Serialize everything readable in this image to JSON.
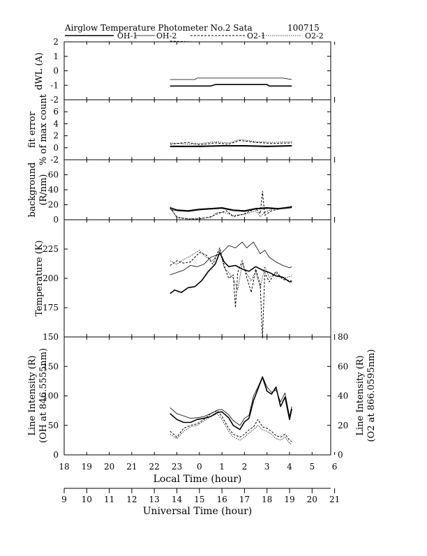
{
  "header": {
    "title": "Airglow Temperature Photometer No.2  Sata",
    "date_code": "100715"
  },
  "legend": [
    "OH-1",
    "OH-2",
    "O2-1",
    "O2-2"
  ],
  "chart_data": [
    {
      "type": "line",
      "panel": "dwl",
      "ylabel": "dWL (A)",
      "ylim": [
        -2,
        2
      ],
      "yticks": [
        "2",
        "1",
        "0",
        "-1",
        "-2"
      ],
      "series": [
        {
          "name": "OH-1",
          "x": [
            22.7,
            23.7,
            23.8,
            0.5,
            0.7,
            3.0,
            3.1,
            4.1
          ],
          "y": [
            -1.05,
            -1.05,
            -1.05,
            -1.05,
            -0.95,
            -0.95,
            -1.05,
            -1.05
          ]
        },
        {
          "name": "OH-2",
          "x": [
            22.7,
            23.8,
            23.9,
            3.5,
            3.7,
            4.1
          ],
          "y": [
            -0.6,
            -0.6,
            -0.5,
            -0.5,
            -0.5,
            -0.6
          ]
        },
        {
          "name": "O2-1",
          "x": [
            22.7,
            23.7,
            23.9
          ],
          "y": [
            2.05,
            2.0,
            2.0
          ]
        },
        {
          "name": "O2-2",
          "x": [
            22.7,
            23.9
          ],
          "y": [
            2.0,
            2.0
          ]
        }
      ]
    },
    {
      "type": "line",
      "panel": "fit_error",
      "ylabel": "fit error",
      "ylabel2": "% of max count",
      "ylim": [
        -2,
        8
      ],
      "yticks": [
        "6",
        "4",
        "2",
        "0",
        "-2"
      ],
      "series": [
        {
          "name": "OH-1",
          "x": [
            22.7,
            0,
            1,
            2,
            3,
            4.1
          ],
          "y": [
            0.2,
            0.2,
            0.3,
            0.3,
            0.2,
            0.3
          ]
        },
        {
          "name": "OH-2",
          "x": [
            22.7,
            0,
            1,
            2,
            3,
            4.1
          ],
          "y": [
            0.3,
            0.3,
            0.4,
            0.4,
            0.3,
            0.4
          ]
        },
        {
          "name": "O2-1",
          "x": [
            22.7,
            23.5,
            0,
            0.7,
            1.3,
            1.8,
            2.5,
            3.2,
            4.1
          ],
          "y": [
            0.6,
            0.9,
            0.5,
            0.8,
            0.6,
            1.2,
            0.9,
            0.7,
            0.8
          ]
        },
        {
          "name": "O2-2",
          "x": [
            22.7,
            23.5,
            0,
            0.7,
            1.3,
            1.8,
            2.5,
            3.2,
            4.1
          ],
          "y": [
            0.8,
            0.6,
            0.7,
            1.0,
            0.8,
            1.4,
            1.0,
            0.9,
            1.0
          ]
        }
      ]
    },
    {
      "type": "line",
      "panel": "background",
      "ylabel": "background",
      "ylabel2": "(R/nm)",
      "ylim": [
        0,
        80
      ],
      "yticks": [
        "60",
        "40",
        "20",
        "0"
      ],
      "series": [
        {
          "name": "OH-1",
          "x": [
            22.7,
            23.0,
            23.5,
            0.0,
            0.5,
            1.0,
            1.5,
            2.0,
            2.5,
            3.0,
            3.5,
            4.1
          ],
          "y": [
            16,
            13,
            12,
            14,
            15,
            16,
            13,
            12,
            15,
            16,
            15,
            17
          ]
        },
        {
          "name": "OH-2",
          "x": [
            22.7,
            23.0,
            23.5,
            0.0,
            0.5,
            1.0,
            1.5,
            2.0,
            2.5,
            3.0,
            3.5,
            4.1
          ],
          "y": [
            14,
            12,
            11,
            13,
            14,
            15,
            12,
            11,
            14,
            15,
            14,
            16
          ]
        },
        {
          "name": "O2-1",
          "x": [
            22.7,
            23.0,
            23.5,
            0.0,
            0.5,
            0.8,
            1.2,
            1.5,
            2.0,
            2.5,
            2.7,
            2.8,
            2.9,
            3.2,
            3.5,
            4.1
          ],
          "y": [
            17,
            3,
            1,
            1,
            4,
            8,
            12,
            4,
            8,
            15,
            8,
            38,
            6,
            12,
            14,
            18
          ]
        },
        {
          "name": "O2-2",
          "x": [
            22.7,
            23.0,
            23.5,
            0.0,
            0.5,
            0.8,
            1.2,
            1.5,
            2.0,
            2.5,
            2.7,
            2.9,
            3.2,
            3.5,
            4.1
          ],
          "y": [
            15,
            4,
            1,
            2,
            3,
            10,
            9,
            6,
            7,
            12,
            4,
            10,
            14,
            15,
            17
          ]
        }
      ]
    },
    {
      "type": "line",
      "panel": "temperature",
      "ylabel": "Temperature (K)",
      "ylim": [
        150,
        250
      ],
      "yticks": [
        "225",
        "200",
        "175",
        "150"
      ],
      "series": [
        {
          "name": "OH-1",
          "x": [
            22.7,
            22.9,
            23.2,
            23.5,
            23.8,
            0.1,
            0.4,
            0.7,
            0.9,
            1.1,
            1.3,
            1.6,
            1.9,
            2.2,
            2.5,
            2.8,
            3.1,
            3.4,
            3.7,
            4.0,
            4.1
          ],
          "y": [
            187,
            190,
            188,
            192,
            193,
            198,
            206,
            212,
            222,
            214,
            210,
            211,
            208,
            206,
            210,
            207,
            205,
            202,
            201,
            197,
            197
          ]
        },
        {
          "name": "OH-2",
          "x": [
            22.7,
            23.0,
            23.3,
            23.6,
            23.9,
            0.2,
            0.5,
            0.8,
            1.0,
            1.3,
            1.6,
            1.9,
            2.1,
            2.4,
            2.7,
            2.9,
            3.1,
            3.4,
            3.7,
            4.0,
            4.1
          ],
          "y": [
            203,
            205,
            207,
            211,
            210,
            212,
            218,
            220,
            222,
            228,
            226,
            231,
            226,
            231,
            221,
            224,
            218,
            214,
            211,
            209,
            210
          ]
        },
        {
          "name": "O2-1",
          "x": [
            22.7,
            23.0,
            23.3,
            23.6,
            0.0,
            0.3,
            0.6,
            0.9,
            1.1,
            1.3,
            1.5,
            1.6,
            1.7,
            1.9,
            2.1,
            2.3,
            2.5,
            2.7,
            2.8,
            2.9,
            3.1,
            3.4,
            3.7,
            4.1
          ],
          "y": [
            211,
            215,
            213,
            214,
            222,
            220,
            212,
            226,
            211,
            200,
            203,
            175,
            205,
            215,
            201,
            188,
            208,
            195,
            148,
            205,
            197,
            206,
            199,
            198
          ]
        },
        {
          "name": "O2-2",
          "x": [
            22.7,
            23.0,
            23.3,
            23.6,
            0.0,
            0.3,
            0.6,
            0.9,
            1.1,
            1.3,
            1.5,
            1.7,
            1.9,
            2.1,
            2.3,
            2.5,
            2.7,
            2.9,
            3.1,
            3.4,
            3.7,
            4.1
          ],
          "y": [
            215,
            212,
            216,
            219,
            224,
            218,
            215,
            224,
            209,
            205,
            200,
            190,
            213,
            204,
            198,
            206,
            192,
            210,
            201,
            204,
            200,
            202
          ]
        }
      ]
    },
    {
      "type": "line",
      "panel": "intensity",
      "ylabel": "Line Intensity (R)",
      "ylabel2": "(OH at 846.5555nm)",
      "ylabel_right": "Line Intensity (R)",
      "ylabel_right2": "(O2 at 866.0595nm)",
      "ylim": [
        0,
        200
      ],
      "yticks": [
        "150",
        "100",
        "50",
        "0"
      ],
      "ylim_right": [
        0,
        80
      ],
      "yticks_right": [
        "80",
        "60",
        "40",
        "20",
        "0"
      ],
      "series": [
        {
          "name": "OH-1",
          "x": [
            22.7,
            23.0,
            23.3,
            23.6,
            23.9,
            0.2,
            0.5,
            0.8,
            1.0,
            1.3,
            1.5,
            1.8,
            2.0,
            2.2,
            2.4,
            2.6,
            2.8,
            3.0,
            3.2,
            3.4,
            3.6,
            3.8,
            4.0,
            4.1
          ],
          "y": [
            70,
            60,
            55,
            55,
            60,
            62,
            65,
            72,
            73,
            63,
            50,
            43,
            56,
            62,
            92,
            112,
            132,
            108,
            103,
            115,
            82,
            98,
            60,
            78
          ]
        },
        {
          "name": "OH-2",
          "x": [
            22.7,
            23.0,
            23.3,
            23.6,
            23.9,
            0.2,
            0.5,
            0.8,
            1.0,
            1.3,
            1.5,
            1.8,
            2.0,
            2.2,
            2.4,
            2.6,
            2.8,
            3.0,
            3.2,
            3.4,
            3.6,
            3.8,
            4.0,
            4.1
          ],
          "y": [
            80,
            70,
            66,
            62,
            63,
            65,
            70,
            76,
            77,
            68,
            58,
            50,
            62,
            67,
            100,
            115,
            133,
            115,
            106,
            110,
            90,
            105,
            65,
            82
          ]
        },
        {
          "name": "O2-1",
          "x": [
            22.7,
            23.0,
            23.3,
            23.6,
            23.9,
            0.2,
            0.5,
            0.8,
            1.0,
            1.3,
            1.5,
            1.8,
            2.0,
            2.2,
            2.4,
            2.6,
            2.8,
            3.0,
            3.2,
            3.4,
            3.6,
            3.8,
            4.0,
            4.1
          ],
          "y": [
            16,
            12,
            18,
            20,
            21,
            24,
            28,
            30,
            26,
            18,
            14,
            12,
            14,
            17,
            19,
            24,
            19,
            18,
            16,
            13,
            12,
            14,
            10,
            9
          ]
        },
        {
          "name": "O2-2",
          "x": [
            22.7,
            23.0,
            23.3,
            23.6,
            23.9,
            0.2,
            0.5,
            0.8,
            1.0,
            1.3,
            1.5,
            1.8,
            2.0,
            2.2,
            2.4,
            2.6,
            2.8,
            3.0,
            3.2,
            3.4,
            3.6,
            3.8,
            4.0,
            4.1
          ],
          "y": [
            14,
            11,
            16,
            19,
            20,
            23,
            26,
            28,
            24,
            16,
            12,
            10,
            12,
            15,
            17,
            20,
            17,
            16,
            14,
            11,
            10,
            12,
            8,
            7
          ]
        }
      ]
    }
  ],
  "local_axis": {
    "label": "Local Time (hour)",
    "ticks": [
      "18",
      "19",
      "20",
      "21",
      "22",
      "23",
      "0",
      "1",
      "2",
      "3",
      "4",
      "5",
      "6"
    ]
  },
  "ut_axis": {
    "label": "Universal Time (hour)",
    "ticks": [
      "9",
      "10",
      "11",
      "12",
      "13",
      "14",
      "15",
      "16",
      "17",
      "18",
      "19",
      "20",
      "21"
    ]
  }
}
